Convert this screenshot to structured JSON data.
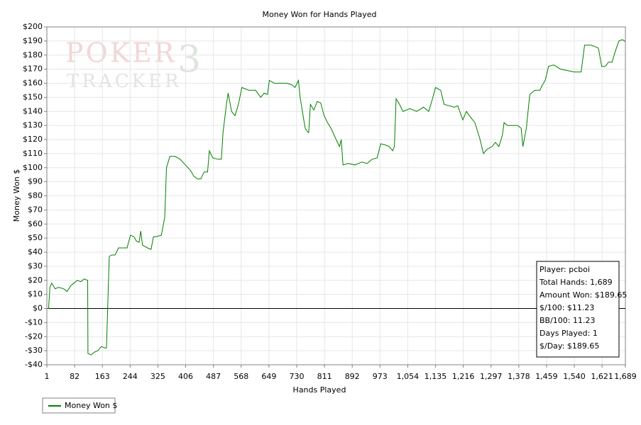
{
  "chart_data": {
    "type": "line",
    "title": "Money Won for Hands Played",
    "x_label": "Hands Played",
    "y_label": "Money Won $",
    "watermark": [
      "POKER",
      "3",
      "TRACKER"
    ],
    "x": [
      1,
      6,
      10,
      15,
      25,
      35,
      50,
      60,
      70,
      80,
      90,
      100,
      110,
      120,
      121,
      130,
      140,
      150,
      160,
      170,
      175,
      183,
      190,
      200,
      210,
      220,
      235,
      245,
      255,
      262,
      270,
      275,
      280,
      295,
      305,
      312,
      320,
      335,
      345,
      350,
      360,
      375,
      390,
      405,
      420,
      430,
      440,
      450,
      460,
      470,
      475,
      485,
      500,
      510,
      515,
      525,
      530,
      540,
      550,
      560,
      570,
      590,
      610,
      625,
      635,
      645,
      650,
      665,
      680,
      700,
      715,
      725,
      735,
      740,
      750,
      755,
      760,
      765,
      770,
      780,
      790,
      800,
      810,
      820,
      830,
      845,
      855,
      860,
      865,
      880,
      900,
      920,
      935,
      950,
      965,
      975,
      990,
      1000,
      1010,
      1015,
      1020,
      1030,
      1040,
      1060,
      1080,
      1100,
      1115,
      1125,
      1135,
      1150,
      1160,
      1175,
      1190,
      1200,
      1210,
      1215,
      1225,
      1240,
      1250,
      1265,
      1275,
      1285,
      1300,
      1310,
      1320,
      1330,
      1335,
      1345,
      1360,
      1375,
      1385,
      1390,
      1400,
      1410,
      1425,
      1440,
      1445,
      1455,
      1465,
      1480,
      1500,
      1520,
      1540,
      1560,
      1570,
      1590,
      1610,
      1620,
      1630,
      1640,
      1650,
      1660,
      1670,
      1680,
      1689
    ],
    "series": [
      {
        "name": "Money Won $",
        "color": "#008000",
        "values": [
          0,
          0,
          15,
          18,
          14,
          15,
          14,
          12,
          16,
          18,
          20,
          19,
          21,
          20,
          -32,
          -33,
          -31,
          -30,
          -27,
          -28,
          -28,
          37,
          38,
          38,
          43,
          43,
          43,
          52,
          51,
          48,
          47,
          55,
          45,
          43,
          42,
          51,
          51,
          52,
          65,
          100,
          108,
          108,
          106,
          102,
          98,
          94,
          92,
          92,
          97,
          97,
          112,
          107,
          106,
          106,
          125,
          145,
          153,
          140,
          137,
          145,
          157,
          155,
          155,
          150,
          153,
          152,
          162,
          160,
          160,
          160,
          159,
          157,
          162,
          150,
          135,
          128,
          126,
          125,
          145,
          141,
          147,
          146,
          137,
          132,
          128,
          120,
          115,
          120,
          102,
          103,
          102,
          104,
          103,
          106,
          107,
          117,
          116,
          115,
          112,
          115,
          149,
          145,
          140,
          142,
          140,
          143,
          140,
          148,
          157,
          155,
          145,
          144,
          143,
          144,
          137,
          134,
          140,
          135,
          132,
          120,
          110,
          113,
          115,
          118,
          115,
          123,
          132,
          130,
          130,
          130,
          128,
          115,
          128,
          152,
          155,
          155,
          158,
          162,
          172,
          173,
          170,
          169,
          168,
          168,
          187,
          187,
          185,
          172,
          172,
          175,
          175,
          183,
          190,
          191,
          189.65
        ]
      }
    ],
    "xlim": [
      1,
      1689
    ],
    "xticks": [
      1,
      82,
      163,
      244,
      325,
      406,
      487,
      568,
      649,
      730,
      811,
      892,
      973,
      {
        "value": 1054,
        "label": "1,054"
      },
      {
        "value": 1135,
        "label": "1,135"
      },
      {
        "value": 1216,
        "label": "1,216"
      },
      {
        "value": 1297,
        "label": "1,297"
      },
      {
        "value": 1378,
        "label": "1,378"
      },
      {
        "value": 1459,
        "label": "1,459"
      },
      {
        "value": 1540,
        "label": "1,540"
      },
      {
        "value": 1621,
        "label": "1,621"
      },
      {
        "value": 1689,
        "label": "1,689"
      }
    ],
    "ylim": [
      -40,
      200
    ],
    "yticks": [
      {
        "value": -40,
        "label": "-$40"
      },
      {
        "value": -30,
        "label": "-$30"
      },
      {
        "value": -20,
        "label": "-$20"
      },
      {
        "value": -10,
        "label": "-$10"
      },
      {
        "value": 0,
        "label": "$0"
      },
      {
        "value": 10,
        "label": "$10"
      },
      {
        "value": 20,
        "label": "$20"
      },
      {
        "value": 30,
        "label": "$30"
      },
      {
        "value": 40,
        "label": "$40"
      },
      {
        "value": 50,
        "label": "$50"
      },
      {
        "value": 60,
        "label": "$60"
      },
      {
        "value": 70,
        "label": "$70"
      },
      {
        "value": 80,
        "label": "$80"
      },
      {
        "value": 90,
        "label": "$90"
      },
      {
        "value": 100,
        "label": "$100"
      },
      {
        "value": 110,
        "label": "$110"
      },
      {
        "value": 120,
        "label": "$120"
      },
      {
        "value": 130,
        "label": "$130"
      },
      {
        "value": 140,
        "label": "$140"
      },
      {
        "value": 150,
        "label": "$150"
      },
      {
        "value": 160,
        "label": "$160"
      },
      {
        "value": 170,
        "label": "$170"
      },
      {
        "value": 180,
        "label": "$180"
      },
      {
        "value": 190,
        "label": "$190"
      },
      {
        "value": 200,
        "label": "$200"
      }
    ],
    "grid": true,
    "info_box": [
      "Player: pcboi",
      "Total Hands: 1,689",
      "Amount Won: $189.65",
      "$/100: $11.23",
      "BB/100: 11.23",
      "Days Played: 1",
      "$/Day: $189.65"
    ]
  }
}
